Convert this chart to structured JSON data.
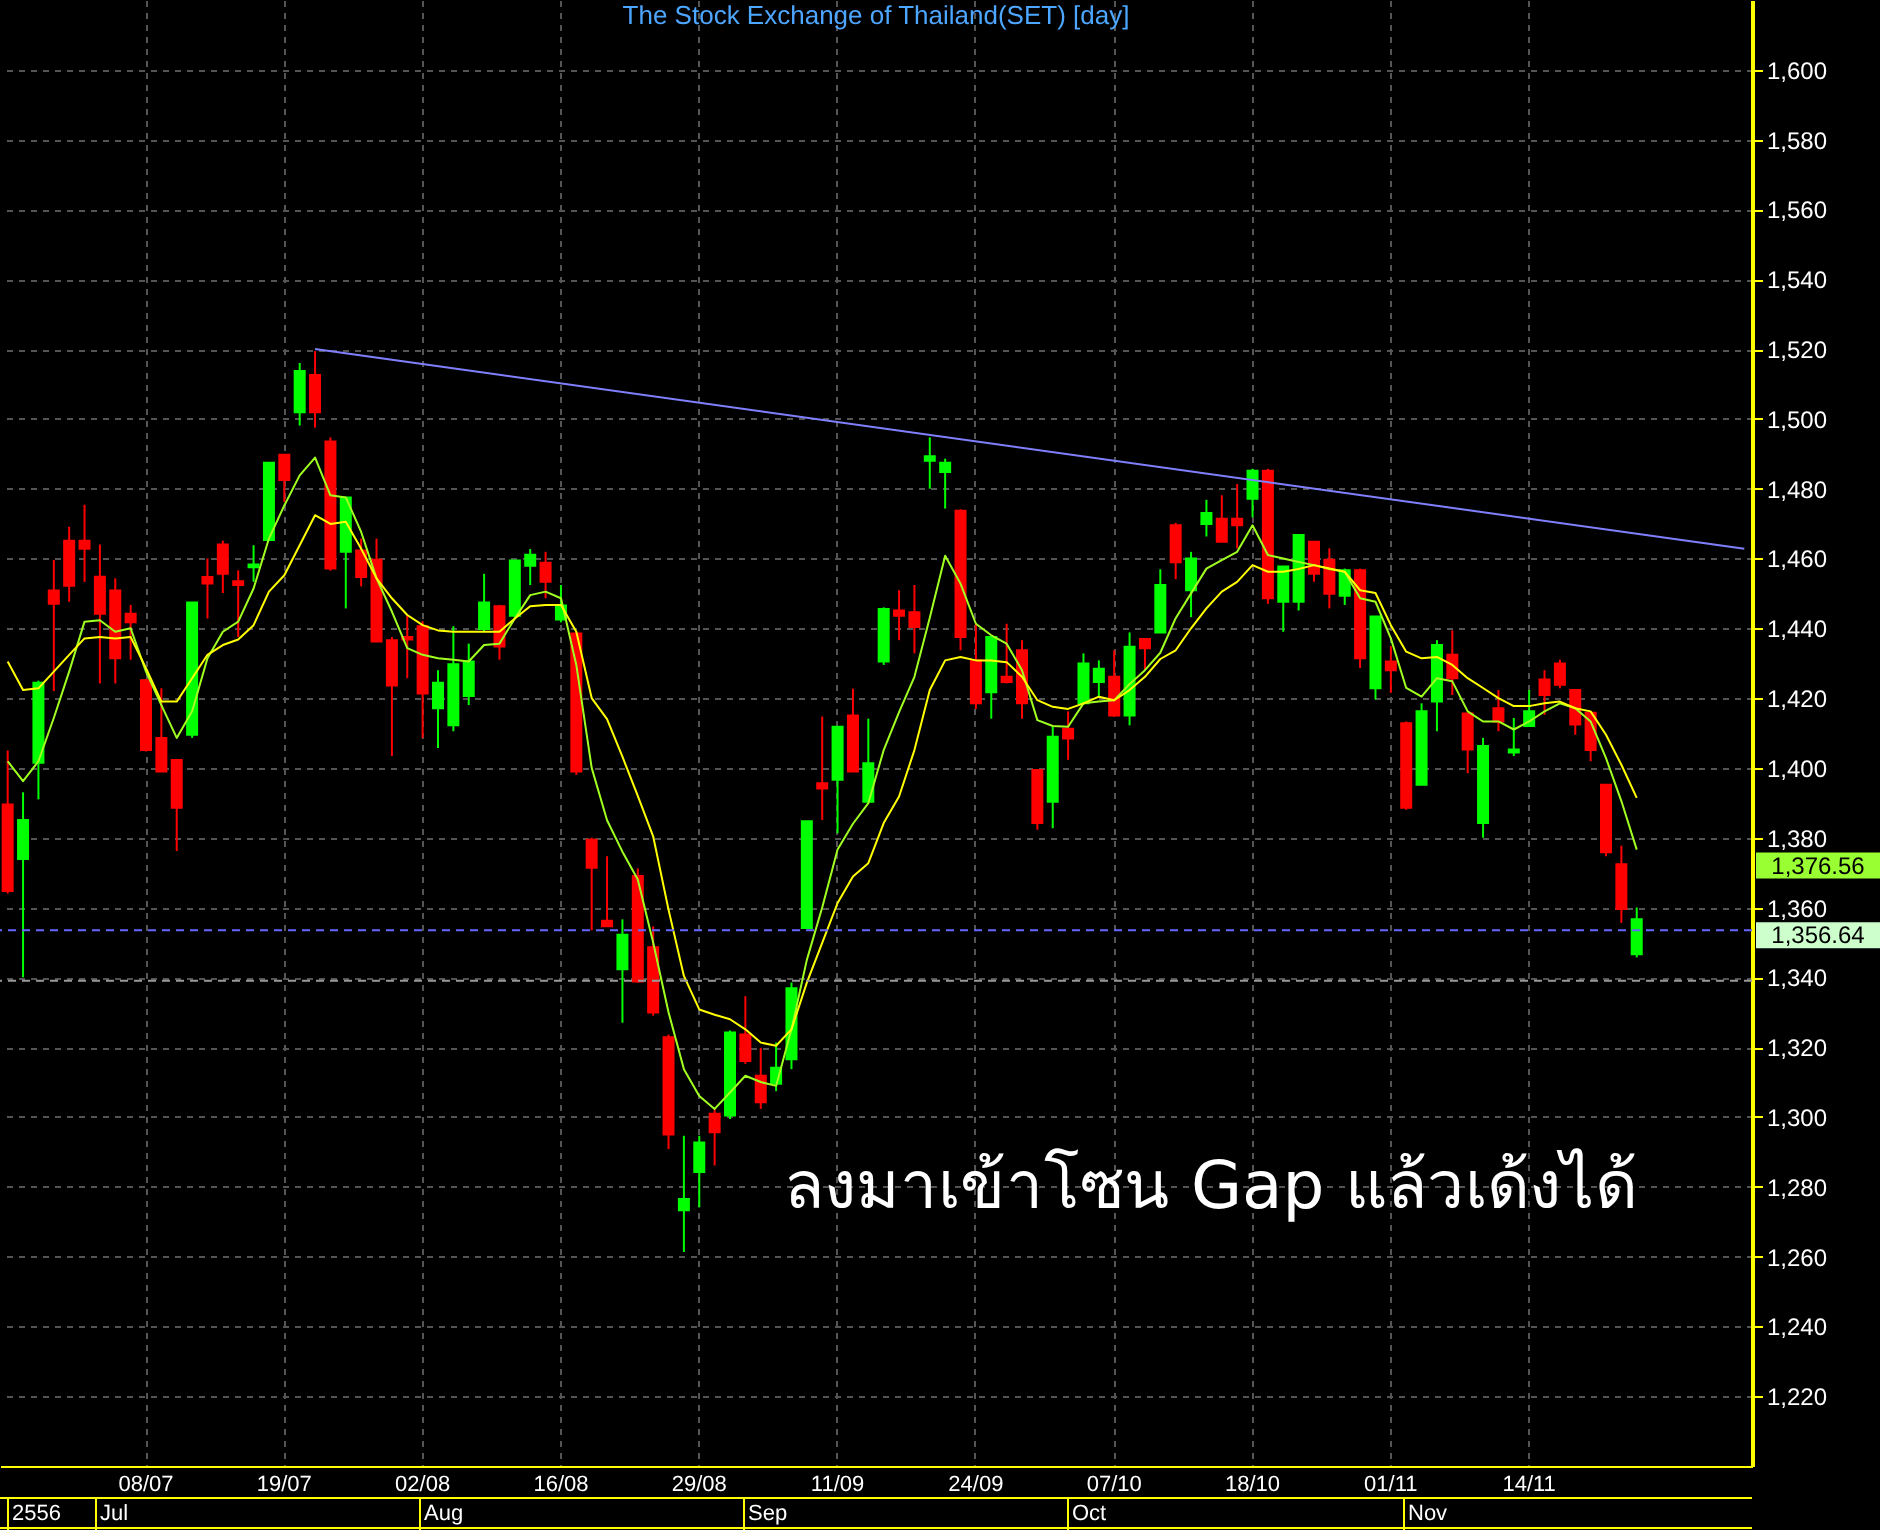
{
  "chart_data": {
    "type": "candlestick",
    "title": "The Stock Exchange of Thailand(SET) [day]",
    "categories": [
      null,
      null,
      null,
      null,
      null,
      null,
      null,
      null,
      null,
      "08/07",
      null,
      null,
      null,
      null,
      null,
      null,
      null,
      null,
      "19/07",
      null,
      null,
      null,
      null,
      null,
      null,
      null,
      null,
      "02/08",
      null,
      null,
      null,
      null,
      null,
      null,
      null,
      null,
      "16/08",
      null,
      null,
      null,
      null,
      null,
      null,
      null,
      null,
      "29/08",
      null,
      null,
      null,
      null,
      null,
      null,
      null,
      null,
      "11/09",
      null,
      null,
      null,
      null,
      null,
      null,
      null,
      null,
      "24/09",
      null,
      null,
      null,
      null,
      null,
      null,
      null,
      null,
      "07/10",
      null,
      null,
      null,
      null,
      null,
      null,
      null,
      null,
      "18/10",
      null,
      null,
      null,
      null,
      null,
      null,
      null,
      null,
      "01/11",
      null,
      null,
      null,
      null,
      null,
      null,
      null,
      null,
      "14/11",
      null,
      null,
      null,
      null,
      null,
      null,
      null,
      null,
      null,
      null,
      null,
      null,
      null,
      null
    ],
    "ohlc": [
      [
        1389.5,
        1405,
        1364,
        1364.7
      ],
      [
        1373.9,
        1393,
        1340,
        1385.1
      ],
      [
        1401.5,
        1425,
        1391,
        1424.4
      ],
      [
        1450.8,
        1459.6,
        1422,
        1447
      ],
      [
        1465.1,
        1469.1,
        1447.6,
        1452.2
      ],
      [
        1465.1,
        1475.4,
        1453.3,
        1462.8
      ],
      [
        1454.8,
        1464,
        1424.2,
        1444.2
      ],
      [
        1450.8,
        1454.3,
        1424.2,
        1431.4
      ],
      [
        1444.2,
        1446.7,
        1431,
        1441.7
      ],
      [
        1425.1,
        1425.5,
        1404.7,
        1405.1
      ],
      [
        1408.6,
        1422.8,
        1399,
        1399
      ],
      [
        1402.3,
        1402.3,
        1376.2,
        1388.6
      ],
      [
        1409.5,
        1447.4,
        1408.6,
        1447.4
      ],
      [
        1454.7,
        1460,
        1442.8,
        1452.8
      ],
      [
        1464,
        1465.1,
        1450.1,
        1455.6
      ],
      [
        1453.5,
        1456.6,
        1437.5,
        1452.4
      ],
      [
        1457.5,
        1463.8,
        1453.3,
        1458.3
      ],
      [
        1465.3,
        1487.4,
        1465.3,
        1487.4
      ],
      [
        1489.7,
        1489.7,
        1476.2,
        1482.5
      ],
      [
        1501.9,
        1516,
        1498.1,
        1513.7
      ],
      [
        1512.6,
        1519.4,
        1497.5,
        1501.9
      ],
      [
        1493.5,
        1494.7,
        1456.5,
        1457.1
      ],
      [
        1461.9,
        1477.5,
        1445.7,
        1477.5
      ],
      [
        1462.3,
        1465.7,
        1452,
        1454.7
      ],
      [
        1459.6,
        1465.7,
        1436.2,
        1436.2
      ],
      [
        1436.6,
        1437.5,
        1403.4,
        1423.6
      ],
      [
        1437.5,
        1443.8,
        1425.7,
        1436.8
      ],
      [
        1440.6,
        1442,
        1408.6,
        1421.3
      ],
      [
        1417.1,
        1428,
        1405.7,
        1424.4
      ],
      [
        1412.2,
        1440.6,
        1410.5,
        1429.7
      ],
      [
        1420.6,
        1435.6,
        1418,
        1430.5
      ],
      [
        1439.8,
        1455.6,
        1439,
        1447.4
      ],
      [
        1446.3,
        1446.7,
        1431,
        1434.8
      ],
      [
        1443.6,
        1459.4,
        1442.8,
        1459.4
      ],
      [
        1457.9,
        1462.7,
        1452.4,
        1461.1
      ],
      [
        1458.8,
        1461.9,
        1448.6,
        1453.3
      ],
      [
        1442.5,
        1452.4,
        1441.7,
        1446.5
      ],
      [
        1438.5,
        1439,
        1398,
        1399
      ],
      [
        1379.4,
        1380,
        1353.5,
        1371.4
      ],
      [
        1356.2,
        1374.7,
        1354.6,
        1354.6
      ],
      [
        1342.3,
        1356.6,
        1327,
        1352.2
      ],
      [
        1369,
        1371.2,
        1338.5,
        1338.8
      ],
      [
        1348.6,
        1354.6,
        1329,
        1329.9
      ],
      [
        1322.8,
        1323.6,
        1290.8,
        1295
      ],
      [
        1273.3,
        1294.6,
        1261.3,
        1276.5
      ],
      [
        1284.2,
        1294.6,
        1274.1,
        1292.7
      ],
      [
        1300.9,
        1302.3,
        1286.1,
        1295.6
      ],
      [
        1300.4,
        1324.8,
        1299.4,
        1324.2
      ],
      [
        1323.6,
        1334.6,
        1315.2,
        1316
      ],
      [
        1311.8,
        1319.8,
        1302.3,
        1304.2
      ],
      [
        1309.5,
        1321.3,
        1307.4,
        1314.1
      ],
      [
        1316.5,
        1338.5,
        1313.7,
        1336.9
      ],
      [
        1354.1,
        1384.7,
        1354.1,
        1384.7
      ],
      [
        1395.6,
        1414.7,
        1385.1,
        1394.1
      ],
      [
        1396.6,
        1411.8,
        1381.3,
        1411.8
      ],
      [
        1415,
        1422.7,
        1399,
        1399
      ],
      [
        1390.3,
        1414.1,
        1390.3,
        1401.3
      ],
      [
        1430.5,
        1446,
        1429.5,
        1445.5
      ],
      [
        1445.1,
        1450.9,
        1436.6,
        1443.6
      ],
      [
        1444.6,
        1452.4,
        1432.8,
        1440.4
      ],
      [
        1488,
        1494.7,
        1480,
        1489.3
      ],
      [
        1484.8,
        1488.6,
        1474.3,
        1487.4
      ],
      [
        1473.7,
        1474.1,
        1433.7,
        1437.5
      ],
      [
        1430.8,
        1441.3,
        1416.9,
        1418.5
      ],
      [
        1421.7,
        1437.5,
        1414.1,
        1437.5
      ],
      [
        1426.1,
        1441.3,
        1424.2,
        1424.6
      ],
      [
        1433.7,
        1436.6,
        1414.1,
        1418.5
      ],
      [
        1399.4,
        1399.4,
        1382.3,
        1384.2
      ],
      [
        1390.3,
        1411.8,
        1382.7,
        1408.9
      ],
      [
        1411.2,
        1416.2,
        1402.3,
        1408.4
      ],
      [
        1418.5,
        1432.8,
        1418.1,
        1429.9
      ],
      [
        1424.6,
        1430.8,
        1420.4,
        1428.4
      ],
      [
        1426.1,
        1433.7,
        1414.6,
        1415
      ],
      [
        1415,
        1438.8,
        1412.2,
        1434.7
      ],
      [
        1436.9,
        1436.9,
        1428,
        1434.3
      ],
      [
        1438.8,
        1456.9,
        1438.8,
        1452.4
      ],
      [
        1469.5,
        1470.2,
        1454.1,
        1458.9
      ],
      [
        1450.9,
        1461.9,
        1443.2,
        1460
      ],
      [
        1469.9,
        1476.8,
        1466.3,
        1473
      ],
      [
        1471.4,
        1478.1,
        1464.8,
        1464.8
      ],
      [
        1471.4,
        1481.3,
        1462.9,
        1469.5
      ],
      [
        1477.1,
        1485.7,
        1471.8,
        1485.1
      ],
      [
        1485.1,
        1485.7,
        1447,
        1448.6
      ],
      [
        1447.6,
        1457.7,
        1439,
        1457.7
      ],
      [
        1447.6,
        1466.7,
        1445.1,
        1466.7
      ],
      [
        1464.8,
        1464.8,
        1453.3,
        1455.6
      ],
      [
        1459.6,
        1462.9,
        1445.7,
        1449.9
      ],
      [
        1449.3,
        1457.1,
        1446.7,
        1456.6
      ],
      [
        1456.6,
        1457.1,
        1428.6,
        1431.4
      ],
      [
        1422.8,
        1443.4,
        1419.6,
        1443.4
      ],
      [
        1430.5,
        1434.9,
        1421.5,
        1428
      ],
      [
        1412.8,
        1413.3,
        1388,
        1388.6
      ],
      [
        1395.2,
        1418.5,
        1395.2,
        1416.2
      ],
      [
        1419,
        1436.6,
        1410.5,
        1435.2
      ],
      [
        1432.4,
        1439.4,
        1420.9,
        1425.7
      ],
      [
        1415.6,
        1415.6,
        1398.5,
        1405.3
      ],
      [
        1384.2,
        1408.6,
        1380,
        1406.3
      ],
      [
        1417.1,
        1422.3,
        1410.5,
        1413.3
      ],
      [
        1404.4,
        1414.3,
        1403.4,
        1405.3
      ],
      [
        1412,
        1422.3,
        1412,
        1416.2
      ],
      [
        1425.3,
        1428,
        1415.2,
        1420.9
      ],
      [
        1429.9,
        1431,
        1422.8,
        1423.8
      ],
      [
        1422.3,
        1422.3,
        1409.5,
        1412.4
      ],
      [
        1415.8,
        1415.8,
        1401.9,
        1405.1
      ],
      [
        1395.2,
        1395.2,
        1374.7,
        1375.8
      ],
      [
        1372.4,
        1377.7,
        1355.6,
        1359.6
      ],
      [
        1346.6,
        1360,
        1345.7,
        1356.64
      ],
      null,
      null,
      null,
      null,
      null,
      null,
      null
    ],
    "series": [
      {
        "type": "line",
        "color": "#a0ff20",
        "values": [
          1401.9,
          1396.2,
          1401.9,
          1414.3,
          1427.6,
          1441.9,
          1442.3,
          1439,
          1440,
          1427.6,
          1418,
          1408.6,
          1416.2,
          1431.4,
          1439,
          1441.9,
          1451.4,
          1465.7,
          1475.2,
          1483.8,
          1488.9,
          1478.1,
          1477.5,
          1467.6,
          1454.3,
          1444.8,
          1434.3,
          1432.4,
          1431.4,
          1431,
          1430.5,
          1435.2,
          1435.6,
          1442.8,
          1449.5,
          1450.5,
          1448.6,
          1429.5,
          1400,
          1385,
          1376,
          1368,
          1350,
          1330,
          1313.7,
          1306,
          1302.3,
          1307,
          1311.8,
          1310,
          1308.9,
          1325.1,
          1345,
          1360,
          1376.6,
          1384,
          1389.9,
          1405.1,
          1416,
          1426.1,
          1443,
          1460.8,
          1452.8,
          1441.3,
          1438,
          1435.6,
          1428,
          1413.7,
          1412,
          1411.8,
          1418.5,
          1419,
          1419.4,
          1424,
          1428,
          1433,
          1442.9,
          1450,
          1457.1,
          1459.5,
          1461.9,
          1469.5,
          1461,
          1460,
          1459,
          1458.1,
          1457,
          1456.2,
          1448.6,
          1447.6,
          1437.1,
          1422.9,
          1420.4,
          1425.7,
          1424.8,
          1416.2,
          1413.3,
          1413.3,
          1411,
          1413.3,
          1416.2,
          1418.5,
          1417.1,
          1413.3,
          1402.8,
          1390.5,
          1376.6,
          null,
          null,
          null,
          null,
          null,
          null,
          null
        ]
      },
      {
        "type": "line",
        "color": "#ffff00",
        "values": [
          1430.5,
          1422.3,
          1422.8,
          1427.6,
          1432.4,
          1437.1,
          1437.5,
          1437.1,
          1437.5,
          1428.6,
          1419,
          1419,
          1425.7,
          1432.4,
          1435.2,
          1436.8,
          1440.9,
          1450.5,
          1455.2,
          1463.8,
          1472.4,
          1469.9,
          1470.5,
          1462.8,
          1454.3,
          1448.6,
          1443.8,
          1440.9,
          1439.4,
          1439,
          1439,
          1439,
          1439,
          1442.8,
          1446.3,
          1446.7,
          1446.7,
          1439,
          1420,
          1414,
          1403.2,
          1392,
          1380.4,
          1359.4,
          1340.4,
          1330.8,
          1329.3,
          1328,
          1325.1,
          1321.3,
          1320.4,
          1325.1,
          1338.5,
          1349.9,
          1361.3,
          1368.9,
          1372.7,
          1384.2,
          1391.8,
          1405.1,
          1422.3,
          1430.8,
          1431.8,
          1430.8,
          1430.8,
          1430.3,
          1426.1,
          1419.4,
          1417.5,
          1416.9,
          1418.5,
          1420.4,
          1419.4,
          1422.3,
          1426.1,
          1431.2,
          1433.7,
          1440,
          1445.7,
          1450.5,
          1453.3,
          1458.1,
          1456.2,
          1456.2,
          1457,
          1458.1,
          1457.1,
          1456.2,
          1450.9,
          1450.1,
          1440.9,
          1433.3,
          1431.4,
          1431.8,
          1429.5,
          1425.7,
          1422.9,
          1420,
          1417.7,
          1417.7,
          1418.5,
          1419,
          1417.1,
          1416.2,
          1409.5,
          1400.9,
          1391.4,
          null,
          null,
          null,
          null,
          null,
          null,
          null
        ]
      },
      {
        "type": "line",
        "color": "#8080ff",
        "values": [
          null,
          null,
          null,
          null,
          null,
          null,
          null,
          null,
          null,
          null,
          null,
          null,
          null,
          null,
          null,
          null,
          null,
          null,
          null,
          null,
          1520,
          null,
          null,
          null,
          null,
          null,
          null,
          null,
          null,
          null,
          null,
          null,
          null,
          null,
          null,
          null,
          null,
          null,
          null,
          null,
          null,
          null,
          null,
          null,
          null,
          null,
          null,
          null,
          null,
          null,
          null,
          null,
          null,
          null,
          null,
          null,
          null,
          null,
          null,
          null,
          null,
          null,
          null,
          null,
          null,
          null,
          null,
          null,
          null,
          null,
          null,
          null,
          null,
          null,
          null,
          null,
          null,
          null,
          null,
          null,
          null,
          null,
          null,
          null,
          null,
          null,
          null,
          null,
          null,
          null,
          null,
          null,
          null,
          null,
          null,
          null,
          null,
          null,
          null,
          null,
          null,
          null,
          null,
          null,
          null,
          null,
          null,
          null,
          null,
          null,
          null,
          null,
          null,
          1462.8
        ]
      }
    ],
    "ylim": [
      1200,
      1620
    ],
    "yticks": [
      {
        "value": 1220,
        "label": "1,220"
      },
      {
        "value": 1240,
        "label": "1,240"
      },
      {
        "value": 1260,
        "label": "1,260"
      },
      {
        "value": 1280,
        "label": "1,280"
      },
      {
        "value": 1300,
        "label": "1,300"
      },
      {
        "value": 1320,
        "label": "1,320"
      },
      {
        "value": 1340,
        "label": "1,340"
      },
      {
        "value": 1360,
        "label": "1,360"
      },
      {
        "value": 1380,
        "label": "1,380"
      },
      {
        "value": 1400,
        "label": "1,400"
      },
      {
        "value": 1420,
        "label": "1,420"
      },
      {
        "value": 1440,
        "label": "1,440"
      },
      {
        "value": 1460,
        "label": "1,460"
      },
      {
        "value": 1480,
        "label": "1,480"
      },
      {
        "value": 1500,
        "label": "1,500"
      },
      {
        "value": 1520,
        "label": "1,520"
      },
      {
        "value": 1540,
        "label": "1,540"
      },
      {
        "value": 1560,
        "label": "1,560"
      },
      {
        "value": 1580,
        "label": "1,580"
      },
      {
        "value": 1600,
        "label": "1,600"
      }
    ],
    "grid": true,
    "ref_lines": [
      {
        "axis": "y",
        "value": 1353.5,
        "color": "#6666ff",
        "line_style": "dashed"
      },
      {
        "axis": "y",
        "value": 1339,
        "color": "#999999",
        "line_style": "dashed"
      }
    ],
    "annotations": [
      "ลงมาเข้าโซน Gap แล้วเด้งได้",
      "2556",
      "Jul",
      "Aug",
      "Sep",
      "Oct",
      "Nov",
      "1,376.56",
      "1,356.64"
    ]
  }
}
